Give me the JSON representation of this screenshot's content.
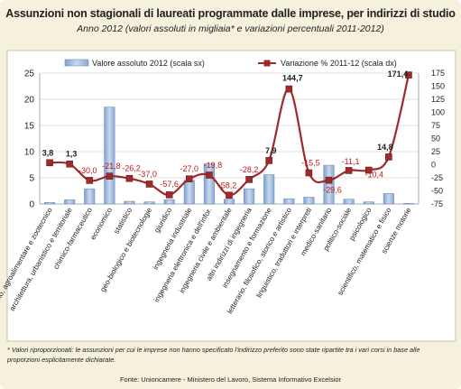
{
  "title": "Assunzioni non stagionali di laureati programmate dalle imprese, per indirizzi di studio",
  "subtitle": "Anno 2012 (valori assoluti in migliaia* e variazioni percentuali 2011-2012)",
  "footnote": "* Valori riproporzionati: le assunzioni per cui le imprese non hanno specificato l'indirizzo preferito sono state ripartite tra i vari corsi in base alle proporzioni esplicitamente dichiarate.",
  "source": "Fonte: Unioncamere - Ministero del Lavoro, Sistema Informativo Excelsior",
  "colors": {
    "bar": "#a9c1e0",
    "bar_edge": "#6f8fbf",
    "line": "#9e2b2b",
    "label": "#c0171b",
    "background": "#f5f1dc"
  },
  "chart_data": {
    "type": "bar",
    "categories": [
      "agrario, agroalimentare e zootecnico",
      "architettura, urbanistico e territoriale",
      "chimico-farmaceutico",
      "economico",
      "statistico",
      "geo-biologico e biotecnologie",
      "giuridico",
      "ingegneria industriale",
      "ingegneria elettronica e dell'infor.",
      "ingegneria civile e ambientale",
      "altri indirizzi di ingegneria",
      "insegnamento e formazione",
      "letterario, filosofico, storico e artistico",
      "linguistico, traduttori e interpreti",
      "medico-sanitario",
      "politico-sociale",
      "psicologico",
      "scientifico, matematico e fisico",
      "scienze motorie"
    ],
    "series": [
      {
        "name": "Valore assoluto 2012 (scala sx)",
        "type": "bar",
        "axis": "left",
        "values": [
          0.3,
          0.8,
          2.9,
          18.5,
          0.5,
          0.4,
          0.8,
          4.5,
          7.7,
          0.9,
          2.9,
          5.6,
          1.0,
          1.3,
          7.4,
          0.9,
          0.4,
          2.0,
          0.1
        ]
      },
      {
        "name": "Variazione % 2011-12 (scala dx)",
        "type": "line",
        "axis": "right",
        "values": [
          3.8,
          1.3,
          -30.0,
          -21.8,
          -26.2,
          -37.0,
          -57.6,
          -27.0,
          -19.8,
          -58.2,
          -28.2,
          7.9,
          144.7,
          -15.5,
          -29.6,
          -11.1,
          -10.4,
          14.8,
          171.4
        ],
        "labels": [
          "3,8",
          "1,3",
          "-30,0",
          "-21,8",
          "-26,2",
          "-37,0",
          "-57,6",
          "-27,0",
          "-19,8",
          "-58,2",
          "-28,2",
          "7,9",
          "144,7",
          "-15,5",
          "-29,6",
          "-11,1",
          "-10,4",
          "14,8",
          "171,4"
        ]
      }
    ],
    "y_left": {
      "range": [
        0,
        25
      ],
      "ticks": [
        0,
        5,
        10,
        15,
        20,
        25
      ]
    },
    "y_right": {
      "range": [
        -75,
        175
      ],
      "ticks": [
        -75,
        -50,
        -25,
        0,
        25,
        50,
        75,
        100,
        125,
        150,
        175
      ],
      "tick_labels": [
        "-75",
        "-50",
        "-25",
        "0",
        "25",
        "50",
        "75",
        "100",
        "125",
        "150",
        "175"
      ]
    },
    "grid": true,
    "legend": "top"
  }
}
